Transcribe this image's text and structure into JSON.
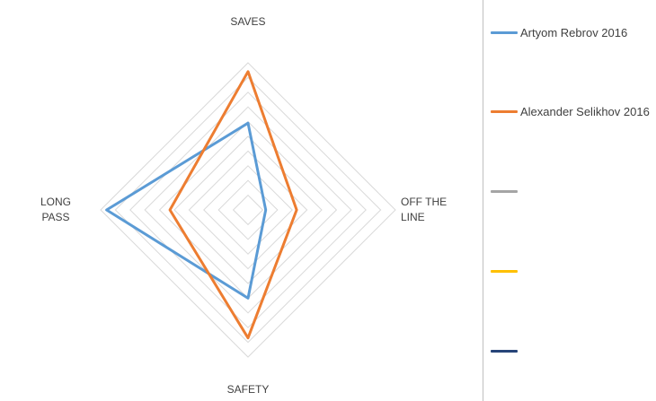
{
  "chart_data": {
    "type": "radar",
    "axes": [
      "SAVES",
      "OFF THE LINE",
      "SAFETY",
      "LONG PASS"
    ],
    "axis_label_lines": [
      [
        "SAVES"
      ],
      [
        "OFF THE",
        "LINE"
      ],
      [
        "SAFETY"
      ],
      [
        "LONG",
        "PASS"
      ]
    ],
    "rmax": 10,
    "grid_levels": 10,
    "series": [
      {
        "name": "Artyom Rebrov 2016",
        "color": "#5b9bd5",
        "values": [
          5.9,
          1.2,
          6.0,
          9.6
        ]
      },
      {
        "name": "Alexander Selikhov 2016",
        "color": "#ed7d31",
        "values": [
          9.4,
          3.3,
          8.7,
          5.3
        ]
      },
      {
        "name": "",
        "color": "#a5a5a5",
        "values": []
      },
      {
        "name": "",
        "color": "#ffc000",
        "values": []
      },
      {
        "name": "",
        "color": "#264478",
        "values": []
      }
    ],
    "grid": true,
    "legend_position": "right"
  }
}
